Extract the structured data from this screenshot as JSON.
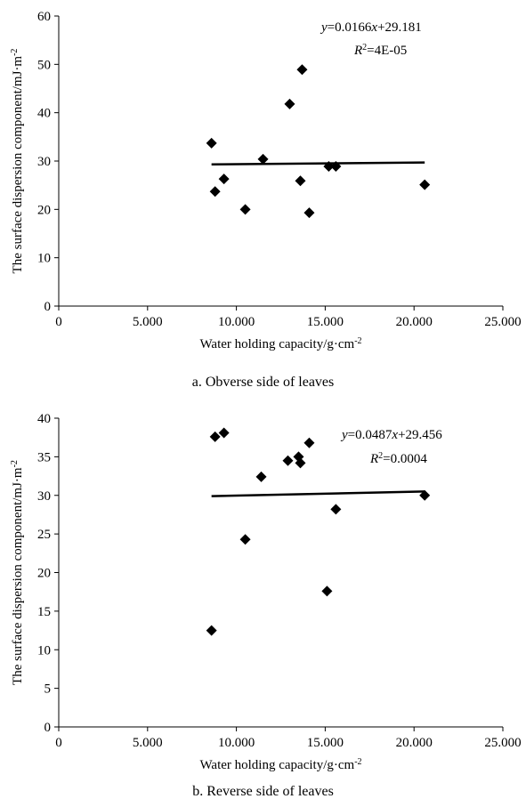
{
  "chart_data": [
    {
      "type": "scatter",
      "caption": "a. Obverse side of leaves",
      "xlabel": "Water holding capacity/g·cm",
      "xlabel_sup": "-2",
      "ylabel": "The surface dispersion component/mJ·m",
      "ylabel_sup": "-2",
      "xlim": [
        0,
        25000
      ],
      "ylim": [
        0,
        60
      ],
      "xticks": [
        0,
        5000,
        10000,
        15000,
        20000,
        25000
      ],
      "xtick_labels": [
        "0",
        "5.000",
        "10.000",
        "15.000",
        "20.000",
        "25.000"
      ],
      "yticks": [
        0,
        10,
        20,
        30,
        40,
        50,
        60
      ],
      "ytick_labels": [
        "0",
        "10",
        "20",
        "30",
        "40",
        "50",
        "60"
      ],
      "points": [
        {
          "x": 8600,
          "y": 33.7
        },
        {
          "x": 8800,
          "y": 23.7
        },
        {
          "x": 9300,
          "y": 26.3
        },
        {
          "x": 10500,
          "y": 20.0
        },
        {
          "x": 11500,
          "y": 30.4
        },
        {
          "x": 13000,
          "y": 41.8
        },
        {
          "x": 13600,
          "y": 25.9
        },
        {
          "x": 13700,
          "y": 48.9
        },
        {
          "x": 14100,
          "y": 19.3
        },
        {
          "x": 15200,
          "y": 28.9
        },
        {
          "x": 15600,
          "y": 28.9
        },
        {
          "x": 20600,
          "y": 25.1
        }
      ],
      "trendline": {
        "slope_label": "0.0166",
        "intercept_label": "29.181",
        "x_range": [
          8600,
          20600
        ],
        "y_range": [
          29.3,
          29.7
        ]
      },
      "equation": {
        "y_var": "y",
        "eq_sign": "=",
        "coef": "0.0166",
        "x_var": "x",
        "plus_const": "+29.181",
        "r_var": "R",
        "r_sup": "2",
        "r_value": "=4E-05"
      }
    },
    {
      "type": "scatter",
      "caption": "b. Reverse side of leaves",
      "xlabel": "Water holding capacity/g·cm",
      "xlabel_sup": "-2",
      "ylabel": "The surface dispersion component/mJ·m",
      "ylabel_sup": "-2",
      "xlim": [
        0,
        25000
      ],
      "ylim": [
        0,
        40
      ],
      "xticks": [
        0,
        5000,
        10000,
        15000,
        20000,
        25000
      ],
      "xtick_labels": [
        "0",
        "5.000",
        "10.000",
        "15.000",
        "20.000",
        "25.000"
      ],
      "yticks": [
        0,
        5,
        10,
        15,
        20,
        25,
        30,
        35,
        40
      ],
      "ytick_labels": [
        "0",
        "5",
        "10",
        "15",
        "20",
        "25",
        "30",
        "35",
        "40"
      ],
      "points": [
        {
          "x": 8600,
          "y": 12.5
        },
        {
          "x": 8800,
          "y": 37.6
        },
        {
          "x": 9300,
          "y": 38.1
        },
        {
          "x": 10500,
          "y": 24.3
        },
        {
          "x": 11400,
          "y": 32.4
        },
        {
          "x": 12900,
          "y": 34.5
        },
        {
          "x": 13500,
          "y": 35.0
        },
        {
          "x": 13600,
          "y": 34.2
        },
        {
          "x": 14100,
          "y": 36.8
        },
        {
          "x": 15100,
          "y": 17.6
        },
        {
          "x": 15600,
          "y": 28.2
        },
        {
          "x": 20600,
          "y": 30.0
        }
      ],
      "trendline": {
        "slope_label": "0.0487",
        "intercept_label": "29.456",
        "x_range": [
          8600,
          20600
        ],
        "y_range": [
          29.9,
          30.5
        ]
      },
      "equation": {
        "y_var": "y",
        "eq_sign": "=",
        "coef": "0.0487",
        "x_var": "x",
        "plus_const": "+29.456",
        "r_var": "R",
        "r_sup": "2",
        "r_value": "=0.0004"
      }
    }
  ],
  "colors": {
    "marker": "#000000",
    "line": "#000000",
    "axis": "#000000",
    "background": "#ffffff"
  }
}
